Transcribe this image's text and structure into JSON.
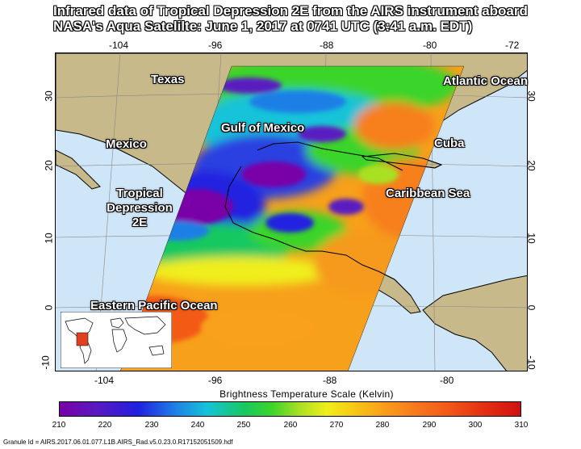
{
  "title": {
    "line1": "Infrared data of Tropical Depression 2E from the AIRS instrument aboard",
    "line2": "NASA's Aqua Satelilte: June 1, 2017 at 0741 UTC (3:41 a.m. EDT)"
  },
  "axes": {
    "top_lon": [
      "-104",
      "-96",
      "-88",
      "-80",
      "-72"
    ],
    "bottom_lon": [
      "-104",
      "-96",
      "-88",
      "-80"
    ],
    "left_lat": [
      "30",
      "20",
      "10",
      "0",
      "-10"
    ],
    "right_lat": [
      "30",
      "20",
      "10",
      "0",
      "-10"
    ]
  },
  "labels": {
    "texas": "Texas",
    "atlantic": "Atlantic Ocean",
    "gulf": "Gulf of Mexico",
    "mexico": "Mexico",
    "cuba": "Cuba",
    "td_line1": "Tropical",
    "td_line2": "Depression",
    "td_line3": "2E",
    "caribbean": "Caribbean Sea",
    "pacific": "Eastern Pacific Ocean"
  },
  "colorbar": {
    "title": "Brightness Temperature Scale (Kelvin)",
    "ticks": [
      "210",
      "220",
      "230",
      "240",
      "250",
      "260",
      "270",
      "280",
      "290",
      "300",
      "310"
    ],
    "colors": {
      "cold": "#7a00a8",
      "cool": "#1f7fe6",
      "mid": "#3bd42a",
      "warm": "#f9a01a",
      "hot": "#d01010"
    }
  },
  "granule": "Granule Id = AIRS.2017.06.01.077.L1B.AIRS_Rad.v5.0.23.0.R17152051509.hdf"
}
